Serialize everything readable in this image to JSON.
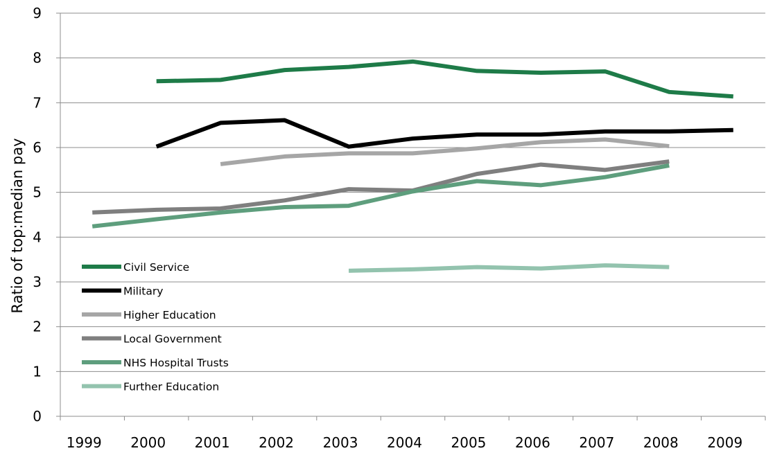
{
  "chart_data": {
    "type": "line",
    "title": "",
    "xlabel": "",
    "ylabel": "Ratio of top:median pay",
    "categories": [
      "1999",
      "2000",
      "2001",
      "2002",
      "2003",
      "2004",
      "2005",
      "2006",
      "2007",
      "2008",
      "2009"
    ],
    "ylim": [
      0,
      9
    ],
    "yticks": [
      "0",
      "1",
      "2",
      "3",
      "4",
      "5",
      "6",
      "7",
      "8",
      "9"
    ],
    "grid": "horizontal",
    "legend_position": "left",
    "series": [
      {
        "name": "Civil Service",
        "color": "#1e7b48",
        "values": [
          null,
          7.48,
          7.51,
          7.73,
          7.8,
          7.92,
          7.71,
          7.67,
          7.7,
          7.24,
          7.14
        ]
      },
      {
        "name": "Military",
        "color": "#000000",
        "values": [
          null,
          6.02,
          6.55,
          6.61,
          6.02,
          6.2,
          6.29,
          6.29,
          6.36,
          6.36,
          6.39
        ]
      },
      {
        "name": "Higher Education",
        "color": "#a6a6a6",
        "values": [
          null,
          null,
          5.63,
          5.8,
          5.87,
          5.87,
          5.98,
          6.12,
          6.18,
          6.03,
          null
        ]
      },
      {
        "name": "Local Government",
        "color": "#7f7f7f",
        "values": [
          4.55,
          4.61,
          4.64,
          4.82,
          5.07,
          5.04,
          5.41,
          5.62,
          5.5,
          5.69,
          null
        ]
      },
      {
        "name": "NHS Hospital Trusts",
        "color": "#5e9e7d",
        "values": [
          4.24,
          4.4,
          4.55,
          4.67,
          4.7,
          5.02,
          5.25,
          5.16,
          5.34,
          5.6,
          null
        ]
      },
      {
        "name": "Further Education",
        "color": "#93c3ae",
        "values": [
          null,
          null,
          null,
          null,
          3.25,
          3.28,
          3.33,
          3.3,
          3.37,
          3.33,
          null
        ]
      }
    ]
  }
}
